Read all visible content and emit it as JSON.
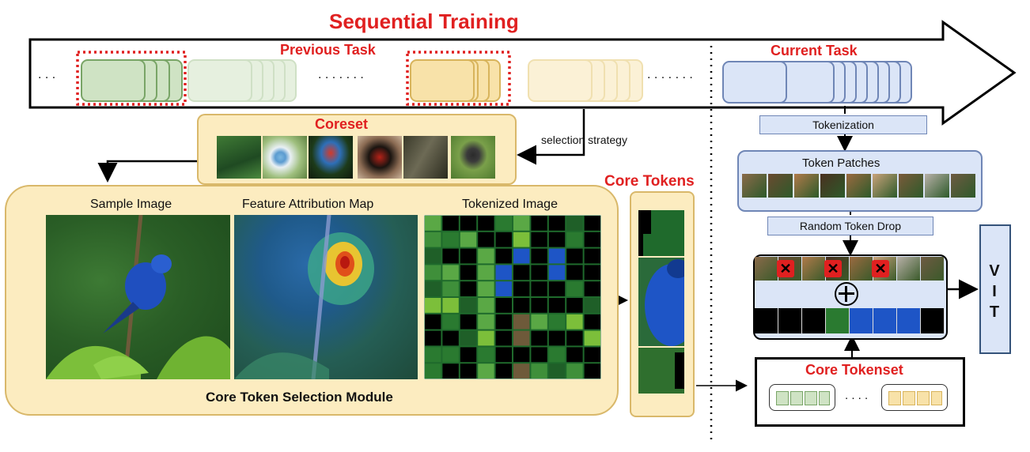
{
  "header": {
    "title": "Sequential Training",
    "previous_task": "Previous Task",
    "current_task": "Current Task",
    "ellipsis_left": ". . .",
    "ellipsis_mid1": ". . . . . . .",
    "ellipsis_mid2": ". . . . . . ."
  },
  "coreset": {
    "title": "Coreset",
    "selection_label": "selection strategy"
  },
  "module": {
    "sample_image": "Sample Image",
    "feature_map": "Feature Attribution Map",
    "tokenized_image": "Tokenized Image",
    "caption": "Core Token Selection Module"
  },
  "core_tokens": {
    "title": "Core Tokens"
  },
  "pipeline": {
    "tokenization": "Tokenization",
    "token_patches": "Token Patches",
    "random_drop": "Random Token Drop",
    "vit": "V\nI\nT",
    "core_tokenset": "Core Tokenset",
    "tokenset_dots": ". . . ."
  },
  "colors": {
    "title_red": "#e02020",
    "green_frame": "#79a567",
    "yellow_frame": "#d8b45c",
    "blue_frame": "#6f86b6",
    "module_bg": "#fcecc0"
  }
}
